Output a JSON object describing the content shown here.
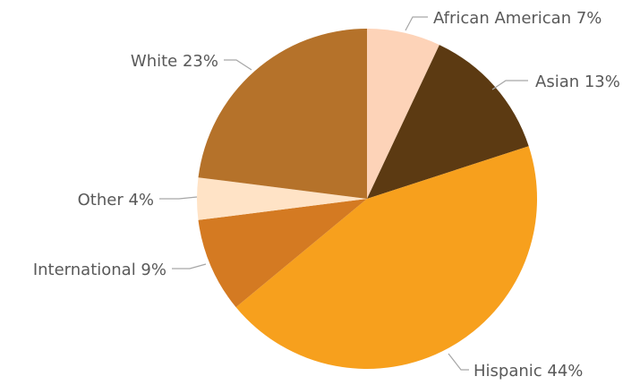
{
  "chart_data": {
    "type": "pie",
    "title": "",
    "slices": [
      {
        "label": "African American",
        "value": 7,
        "display": "African American 7%",
        "color": "#FDD3B8"
      },
      {
        "label": "Asian",
        "value": 13,
        "display": "Asian 13%",
        "color": "#5C3A12"
      },
      {
        "label": "Hispanic",
        "value": 44,
        "display": "Hispanic 44%",
        "color": "#F7A01D"
      },
      {
        "label": "International",
        "value": 9,
        "display": "International 9%",
        "color": "#D47A22"
      },
      {
        "label": "Other",
        "value": 4,
        "display": "Other 4%",
        "color": "#FFE3C6"
      },
      {
        "label": "White",
        "value": 23,
        "display": "White 23%",
        "color": "#B5722A"
      }
    ],
    "legend": "none",
    "data_labels": "outside with leader lines"
  }
}
